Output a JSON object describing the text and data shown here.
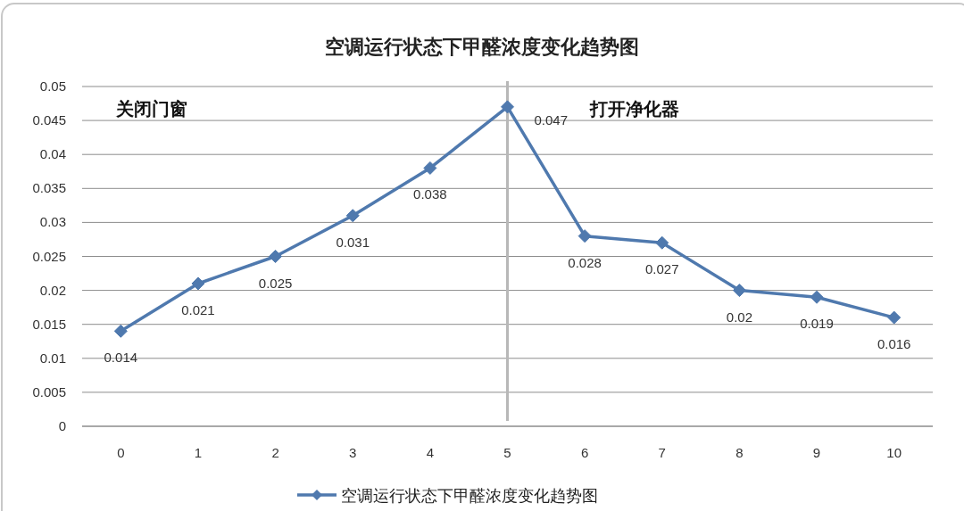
{
  "chart_data": {
    "type": "line",
    "title": "空调运行状态下甲醛浓度变化趋势图",
    "categories": [
      "0",
      "1",
      "2",
      "3",
      "4",
      "5",
      "6",
      "7",
      "8",
      "9",
      "10"
    ],
    "series": [
      {
        "name": "空调运行状态下甲醛浓度变化趋势图",
        "color": "#4f79ae",
        "values": [
          0.014,
          0.021,
          0.025,
          0.031,
          0.038,
          0.047,
          0.028,
          0.027,
          0.02,
          0.019,
          0.016
        ]
      }
    ],
    "ylim": [
      0,
      0.05
    ],
    "yticks": [
      0,
      0.005,
      0.01,
      0.015,
      0.02,
      0.025,
      0.03,
      0.035,
      0.04,
      0.045,
      0.05
    ],
    "grid": "y",
    "legend": "bottom",
    "marker": "diamond",
    "line_style": "solid",
    "data_labels": true,
    "ref_lines": [
      {
        "axis": "x",
        "value": "5",
        "color": "#b8b8b8"
      }
    ],
    "annotations": [
      "关闭门窗",
      "打开净化器"
    ]
  }
}
